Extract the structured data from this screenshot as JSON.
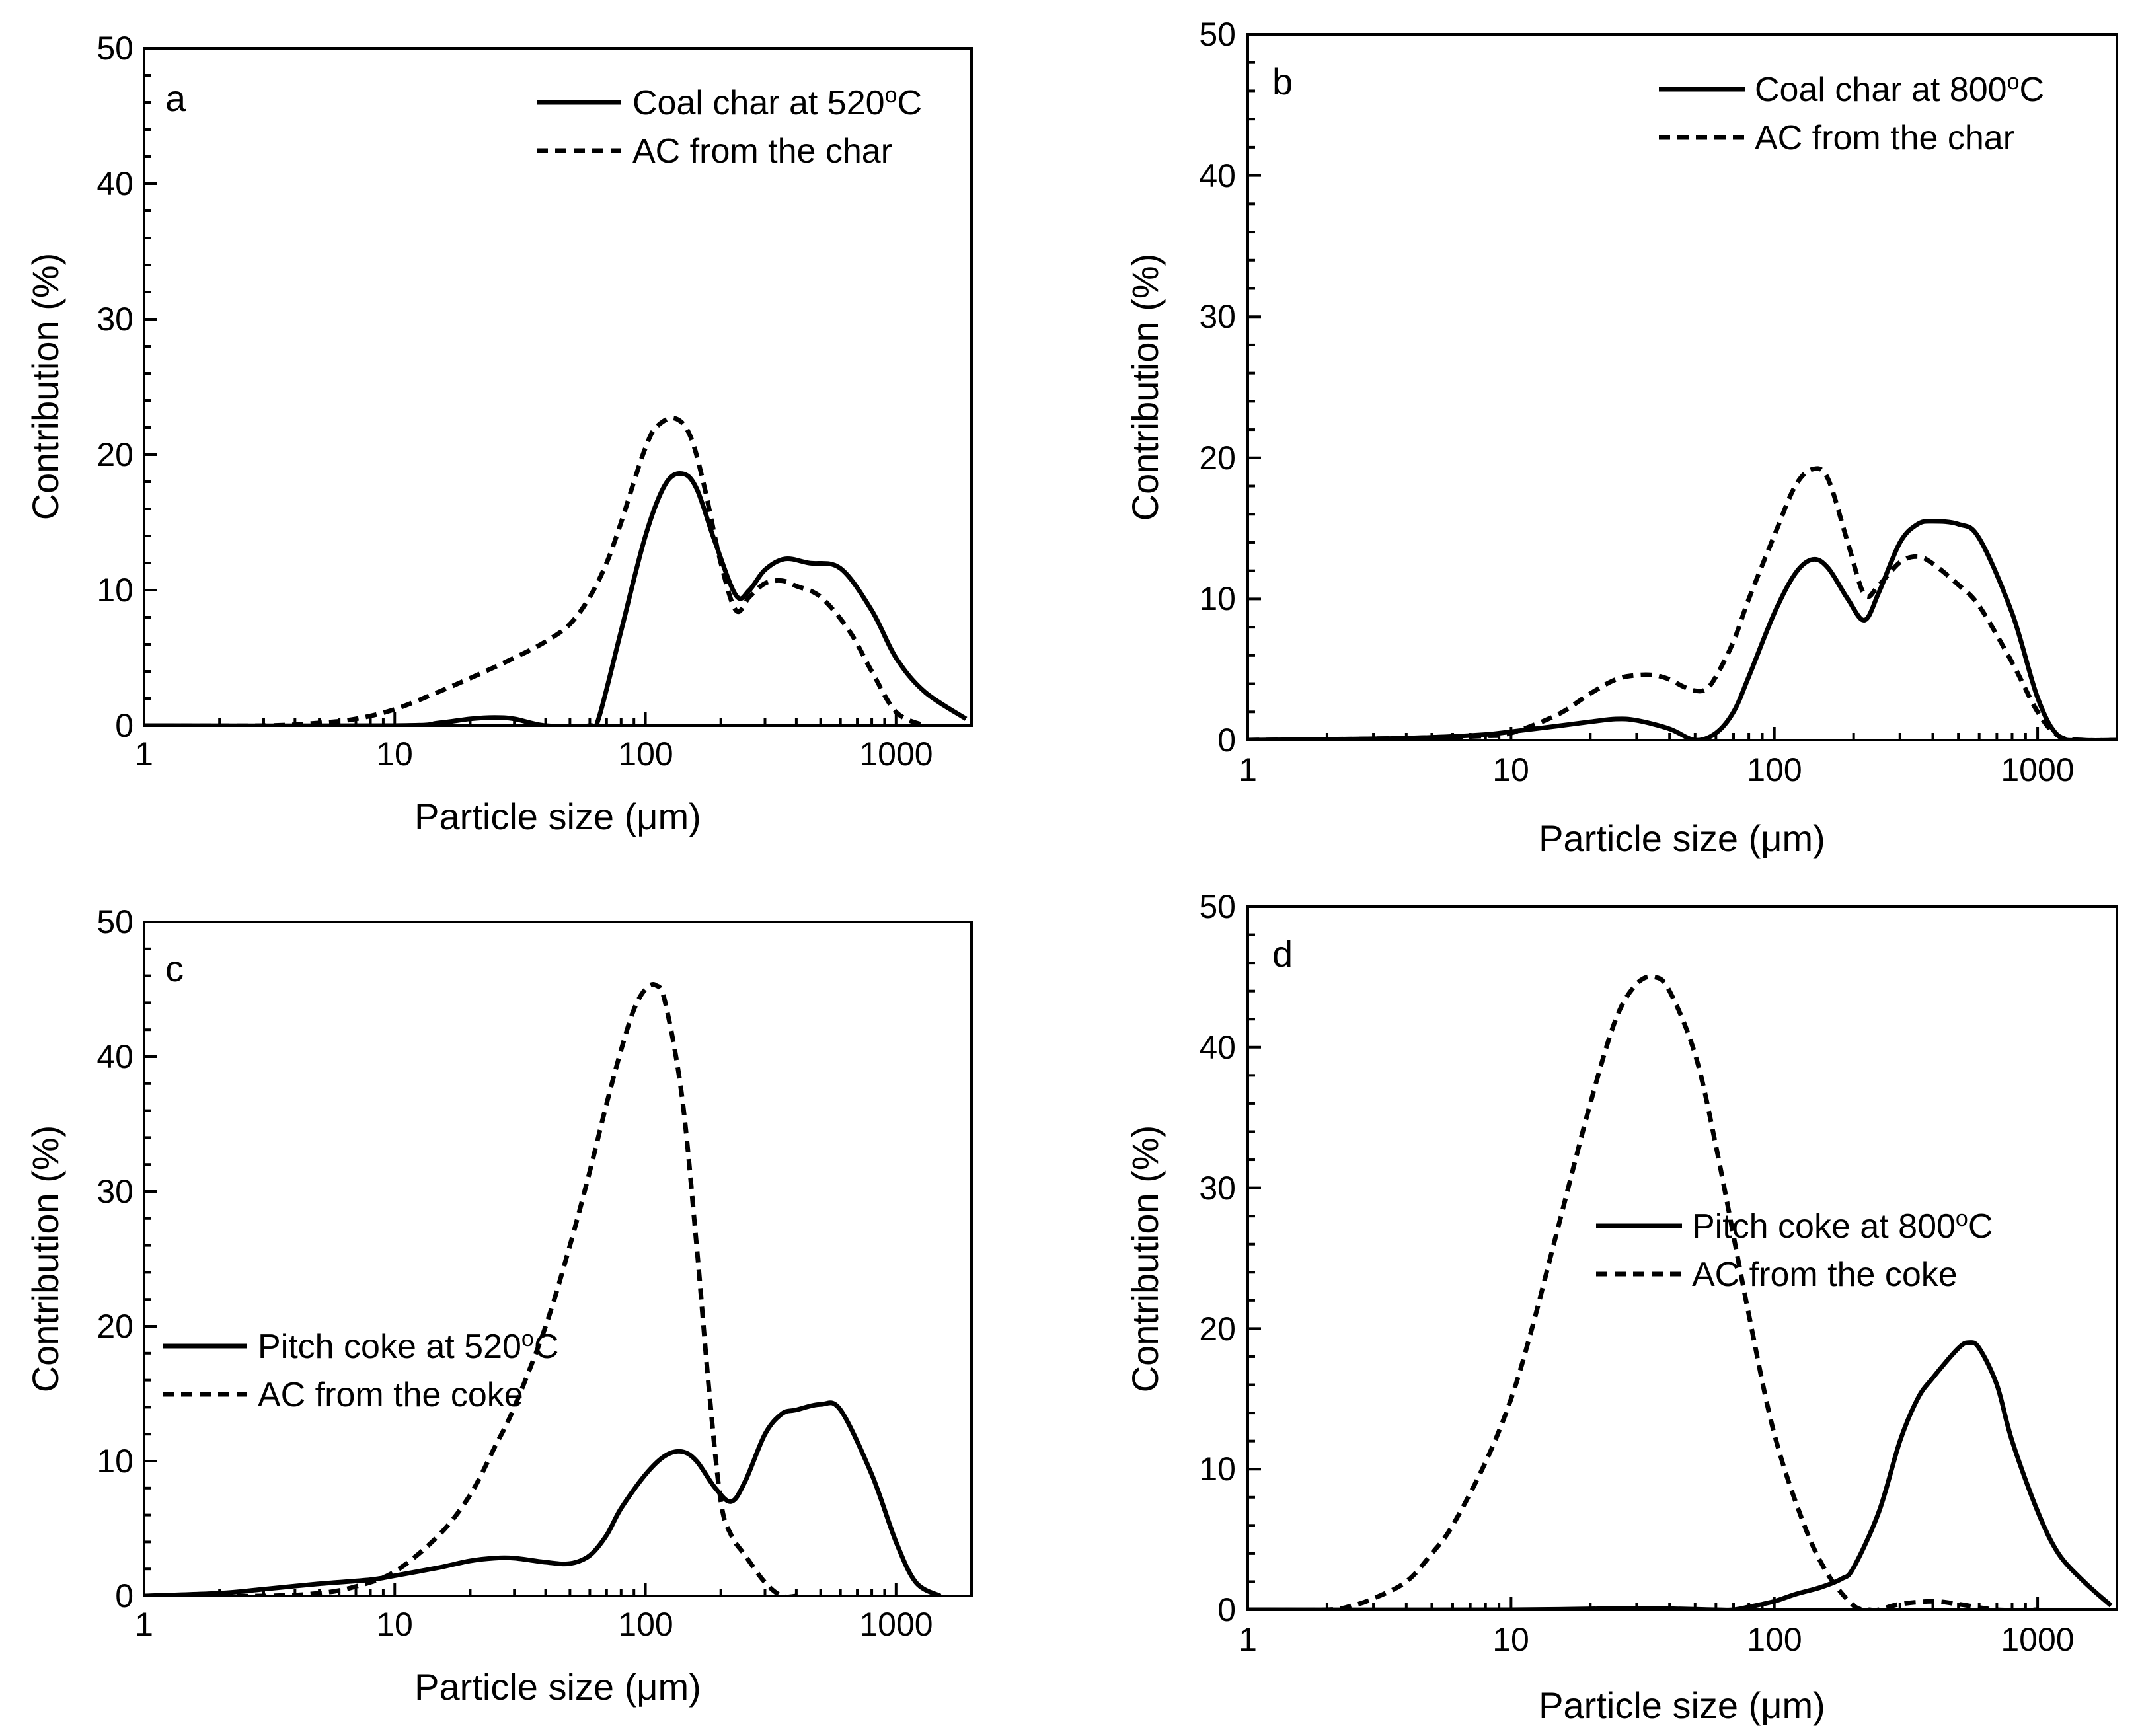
{
  "chart_data": [
    {
      "panel": "a",
      "type": "line",
      "xscale": "log",
      "xlim": [
        1,
        2000
      ],
      "ylim": [
        0,
        50
      ],
      "xticks": [
        1,
        10,
        100,
        1000
      ],
      "xtick_labels": [
        "1",
        "10",
        "100",
        "1000"
      ],
      "yticks": [
        0,
        10,
        20,
        30,
        40,
        50
      ],
      "ytick_labels": [
        "0",
        "10",
        "20",
        "30",
        "40",
        "50"
      ],
      "xlabel": "Particle size (μm)",
      "ylabel": "Contribution (%)",
      "legend_position": "top-right",
      "series": [
        {
          "name": "Coal char at 520°C",
          "style": "solid",
          "x": [
            1,
            10,
            15,
            20,
            25,
            30,
            40,
            60,
            65,
            80,
            100,
            120,
            140,
            160,
            190,
            230,
            260,
            300,
            360,
            450,
            600,
            800,
            1000,
            1300,
            1900
          ],
          "y": [
            0,
            0,
            0.2,
            0.5,
            0.6,
            0.5,
            0,
            0,
            0.5,
            7,
            14,
            17.8,
            18.6,
            17.5,
            13.5,
            9.6,
            10,
            11.5,
            12.3,
            12,
            11.6,
            8.5,
            5,
            2.5,
            0.5
          ]
        },
        {
          "name": "AC from the char",
          "style": "dashed",
          "x": [
            1,
            3,
            5,
            7,
            10,
            15,
            20,
            30,
            40,
            50,
            60,
            70,
            80,
            90,
            100,
            110,
            130,
            150,
            170,
            200,
            230,
            260,
            300,
            350,
            400,
            500,
            650,
            800,
            1000,
            1300
          ],
          "y": [
            0,
            0,
            0.2,
            0.5,
            1.2,
            2.5,
            3.5,
            5,
            6.2,
            7.5,
            9.5,
            12,
            15,
            18,
            20.5,
            22,
            22.7,
            21.5,
            18,
            12,
            8.5,
            9.5,
            10.5,
            10.7,
            10.3,
            9.5,
            7,
            4,
            1,
            0
          ]
        }
      ]
    },
    {
      "panel": "b",
      "type": "line",
      "xscale": "log",
      "xlim": [
        1,
        2000
      ],
      "ylim": [
        0,
        50
      ],
      "xticks": [
        1,
        10,
        100,
        1000
      ],
      "xtick_labels": [
        "1",
        "10",
        "100",
        "1000"
      ],
      "yticks": [
        0,
        10,
        20,
        30,
        40,
        50
      ],
      "ytick_labels": [
        "0",
        "10",
        "20",
        "30",
        "40",
        "50"
      ],
      "xlabel": "Particle size (μm)",
      "ylabel": "Contribution (%)",
      "legend_position": "top-right",
      "series": [
        {
          "name": "Coal char at 800°C",
          "style": "solid",
          "x": [
            1,
            3,
            5,
            8,
            10,
            15,
            20,
            25,
            30,
            40,
            50,
            60,
            70,
            80,
            100,
            120,
            140,
            160,
            190,
            220,
            250,
            300,
            350,
            400,
            500,
            600,
            800,
            1000,
            1200,
            1500,
            2000
          ],
          "y": [
            0,
            0.1,
            0.2,
            0.4,
            0.6,
            1,
            1.3,
            1.5,
            1.4,
            0.8,
            0,
            0.5,
            2,
            4.5,
            9,
            11.8,
            12.8,
            12.2,
            10,
            8.5,
            10.5,
            14,
            15.3,
            15.5,
            15.3,
            14.3,
            9,
            3,
            0.3,
            0,
            0
          ]
        },
        {
          "name": "AC from the char",
          "style": "dashed",
          "x": [
            1,
            3,
            5,
            8,
            10,
            15,
            20,
            25,
            30,
            35,
            40,
            45,
            50,
            55,
            60,
            70,
            80,
            100,
            120,
            140,
            160,
            190,
            220,
            250,
            300,
            350,
            400,
            500,
            600,
            800,
            1000,
            1200,
            1500,
            2000
          ],
          "y": [
            0,
            0.1,
            0.2,
            0.3,
            0.5,
            1.8,
            3.3,
            4.3,
            4.6,
            4.6,
            4.3,
            3.8,
            3.5,
            3.6,
            4.5,
            7,
            10,
            14.5,
            18,
            19.2,
            18.5,
            14,
            10.3,
            11,
            12.6,
            13,
            12.5,
            11,
            9.5,
            5.5,
            2,
            0.3,
            0,
            0
          ]
        }
      ]
    },
    {
      "panel": "c",
      "type": "line",
      "xscale": "log",
      "xlim": [
        1,
        2000
      ],
      "ylim": [
        0,
        50
      ],
      "xticks": [
        1,
        10,
        100,
        1000
      ],
      "xtick_labels": [
        "1",
        "10",
        "100",
        "1000"
      ],
      "yticks": [
        0,
        10,
        20,
        30,
        40,
        50
      ],
      "ytick_labels": [
        "0",
        "10",
        "20",
        "30",
        "40",
        "50"
      ],
      "xlabel": "Particle size (μm)",
      "ylabel": "Contribution (%)",
      "legend_position": "center-left",
      "series": [
        {
          "name": "Pitch coke at 520°C",
          "style": "solid",
          "x": [
            1,
            2,
            3,
            5,
            8,
            10,
            15,
            20,
            25,
            30,
            40,
            50,
            60,
            70,
            80,
            100,
            120,
            140,
            160,
            190,
            220,
            250,
            300,
            350,
            400,
            500,
            600,
            800,
            1000,
            1200,
            1500
          ],
          "y": [
            0,
            0.2,
            0.5,
            0.9,
            1.2,
            1.5,
            2.1,
            2.6,
            2.8,
            2.8,
            2.5,
            2.4,
            3,
            4.5,
            6.5,
            9,
            10.4,
            10.7,
            10,
            8,
            7,
            8.5,
            12,
            13.5,
            13.8,
            14.2,
            13.8,
            9,
            4,
            1,
            0
          ]
        },
        {
          "name": "AC from the coke",
          "style": "dashed",
          "x": [
            1,
            3,
            5,
            7,
            10,
            15,
            20,
            25,
            30,
            40,
            50,
            60,
            70,
            80,
            90,
            100,
            110,
            120,
            140,
            160,
            180,
            200,
            220,
            250,
            300,
            350,
            400
          ],
          "y": [
            0,
            0,
            0.2,
            0.7,
            1.8,
            4.5,
            7.5,
            11,
            14,
            20,
            26,
            31.5,
            36.5,
            40.5,
            43.5,
            45,
            45.3,
            44,
            37,
            26,
            15,
            7,
            4.5,
            3,
            1,
            0,
            0
          ]
        }
      ]
    },
    {
      "panel": "d",
      "type": "line",
      "xscale": "log",
      "xlim": [
        1,
        2000
      ],
      "ylim": [
        0,
        50
      ],
      "xticks": [
        1,
        10,
        100,
        1000
      ],
      "xtick_labels": [
        "1",
        "10",
        "100",
        "1000"
      ],
      "yticks": [
        0,
        10,
        20,
        30,
        40,
        50
      ],
      "ytick_labels": [
        "0",
        "10",
        "20",
        "30",
        "40",
        "50"
      ],
      "xlabel": "Particle size (μm)",
      "ylabel": "Contribution (%)",
      "legend_position": "center-right",
      "series": [
        {
          "name": "Pitch coke at 800°C",
          "style": "solid",
          "x": [
            1,
            10,
            30,
            60,
            70,
            80,
            100,
            120,
            150,
            180,
            200,
            250,
            300,
            350,
            400,
            500,
            550,
            600,
            700,
            800,
            1000,
            1200,
            1500,
            1900
          ],
          "y": [
            0,
            0,
            0.1,
            0,
            0,
            0.2,
            0.6,
            1.1,
            1.6,
            2.2,
            3,
            7,
            12,
            15,
            16.5,
            18.6,
            19,
            18.6,
            16,
            12,
            7,
            4,
            2,
            0.3
          ]
        },
        {
          "name": "AC from the coke",
          "style": "dashed",
          "x": [
            1,
            2,
            2.5,
            3,
            4,
            5,
            6,
            8,
            10,
            12,
            15,
            20,
            25,
            30,
            35,
            40,
            50,
            60,
            80,
            100,
            130,
            160,
            200,
            230,
            250,
            300,
            400,
            500,
            700,
            1000
          ],
          "y": [
            0,
            0,
            0.3,
            0.8,
            2,
            4,
            6,
            10.5,
            15,
            20,
            27,
            36,
            42,
            44.5,
            45,
            44,
            39.5,
            33,
            21,
            12.5,
            6,
            2.5,
            0.3,
            0,
            0,
            0.4,
            0.6,
            0.4,
            0,
            0
          ]
        }
      ]
    }
  ],
  "panels": [
    {
      "letter": "a",
      "xlabel": "Particle size (μm)",
      "ylabel": "Contribution (%)",
      "xtick_labels": [
        "1",
        "10",
        "100",
        "1000"
      ],
      "ytick_labels": [
        "0",
        "10",
        "20",
        "30",
        "40",
        "50"
      ],
      "legend": [
        {
          "pre": "Coal char at 520",
          "sup": "o",
          "post": "C"
        },
        {
          "pre": "AC from the char",
          "sup": "",
          "post": ""
        }
      ]
    },
    {
      "letter": "b",
      "xlabel": "Particle size (μm)",
      "ylabel": "Contribution (%)",
      "xtick_labels": [
        "1",
        "10",
        "100",
        "1000"
      ],
      "ytick_labels": [
        "0",
        "10",
        "20",
        "30",
        "40",
        "50"
      ],
      "legend": [
        {
          "pre": "Coal char at 800",
          "sup": "o",
          "post": "C"
        },
        {
          "pre": "AC from the char",
          "sup": "",
          "post": ""
        }
      ]
    },
    {
      "letter": "c",
      "xlabel": "Particle size (μm)",
      "ylabel": "Contribution (%)",
      "xtick_labels": [
        "1",
        "10",
        "100",
        "1000"
      ],
      "ytick_labels": [
        "0",
        "10",
        "20",
        "30",
        "40",
        "50"
      ],
      "legend": [
        {
          "pre": "Pitch coke at 520",
          "sup": "o",
          "post": "C"
        },
        {
          "pre": "AC from the coke",
          "sup": "",
          "post": ""
        }
      ]
    },
    {
      "letter": "d",
      "xlabel": "Particle size (μm)",
      "ylabel": "Contribution (%)",
      "xtick_labels": [
        "1",
        "10",
        "100",
        "1000"
      ],
      "ytick_labels": [
        "0",
        "10",
        "20",
        "30",
        "40",
        "50"
      ],
      "legend": [
        {
          "pre": "Pitch coke at 800",
          "sup": "o",
          "post": "C"
        },
        {
          "pre": "AC from the coke",
          "sup": "",
          "post": ""
        }
      ]
    }
  ]
}
